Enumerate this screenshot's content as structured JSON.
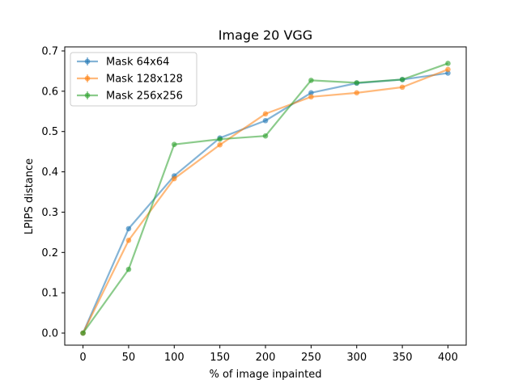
{
  "chart_data": {
    "type": "line",
    "title": "Image 20 VGG",
    "xlabel": "% of image inpainted",
    "ylabel": "LPIPS distance",
    "x": [
      0,
      50,
      100,
      150,
      200,
      250,
      300,
      350,
      400
    ],
    "xlim": [
      -20,
      420
    ],
    "ylim": [
      -0.03,
      0.71
    ],
    "xticks": [
      0,
      50,
      100,
      150,
      200,
      250,
      300,
      350,
      400
    ],
    "yticks": [
      "0.0",
      "0.1",
      "0.2",
      "0.3",
      "0.4",
      "0.5",
      "0.6",
      "0.7"
    ],
    "grid": false,
    "legend_position": "top-left",
    "series": [
      {
        "name": "Mask 64x64",
        "color": "#1f77b4",
        "values": [
          0.0,
          0.259,
          0.39,
          0.484,
          0.527,
          0.596,
          0.62,
          0.629,
          0.645
        ]
      },
      {
        "name": "Mask 128x128",
        "color": "#ff7f0e",
        "values": [
          0.0,
          0.23,
          0.383,
          0.467,
          0.544,
          0.586,
          0.596,
          0.61,
          0.654
        ]
      },
      {
        "name": "Mask 256x256",
        "color": "#2ca02c",
        "values": [
          0.0,
          0.158,
          0.468,
          0.481,
          0.489,
          0.627,
          0.621,
          0.629,
          0.669
        ]
      }
    ]
  }
}
